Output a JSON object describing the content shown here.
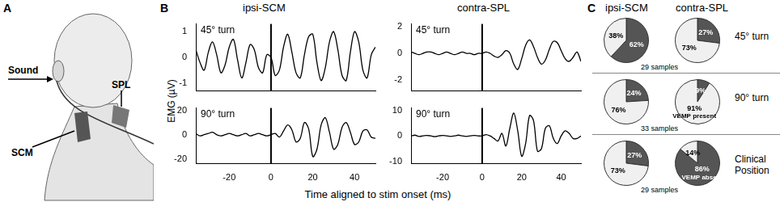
{
  "figure": {
    "panel_labels": [
      "A",
      "B",
      "C"
    ],
    "panel_a": {
      "labels": [
        "Sound",
        "SCM",
        "SPL"
      ]
    },
    "panel_b": {
      "columns": [
        "ipsi-SCM",
        "contra-SPL"
      ],
      "ylabel": "EMG (µV)",
      "xlabel": "Time aligned to stim onset (ms)"
    },
    "panel_c": {
      "columns": [
        "ipsi-SCM",
        "contra-SPL"
      ],
      "rows": [
        "45° turn",
        "90° turn",
        "Clinical Position"
      ],
      "samples": [
        "29 samples",
        "33 samples",
        "29 samples"
      ]
    }
  },
  "chart_data": [
    {
      "type": "line",
      "annotation": "45° turn",
      "color": "#000000",
      "marker": "none",
      "grid": false,
      "tick_labels": "y",
      "x": [
        -36,
        -34,
        -32,
        -30,
        -28,
        -26,
        -24,
        -22,
        -20,
        -18,
        -16,
        -14,
        -12,
        -10,
        -8,
        -6,
        -4,
        -2,
        0,
        2,
        4,
        6,
        8,
        10,
        12,
        14,
        16,
        18,
        20,
        22,
        24,
        26,
        28,
        30,
        32,
        34,
        36,
        38,
        40,
        42,
        44,
        46,
        48,
        50
      ],
      "values": [
        0.3,
        -0.2,
        -0.5,
        0.2,
        0.6,
        0.1,
        -0.6,
        -0.3,
        0.4,
        0.7,
        -0.1,
        -0.8,
        -0.2,
        0.5,
        0.3,
        -0.4,
        -0.6,
        0.1,
        0.0,
        -0.7,
        -0.5,
        0.4,
        0.9,
        0.2,
        -0.6,
        -0.8,
        0.1,
        0.8,
        0.9,
        -0.2,
        -0.9,
        -0.4,
        0.6,
        1.0,
        0.3,
        -0.7,
        -0.9,
        0.2,
        1.0,
        0.6,
        -0.5,
        -0.8,
        0.1,
        0.4
      ],
      "xlim": [
        -36,
        50
      ],
      "xticks": [
        -20,
        0,
        20,
        40
      ],
      "ylim": [
        -1.3,
        1.3
      ],
      "yticks": [
        -1,
        0,
        1
      ],
      "vline_x": 0
    },
    {
      "type": "line",
      "annotation": "45° turn",
      "color": "#000000",
      "marker": "none",
      "grid": false,
      "tick_labels": "y",
      "x": [
        -36,
        -34,
        -32,
        -30,
        -28,
        -26,
        -24,
        -22,
        -20,
        -18,
        -16,
        -14,
        -12,
        -10,
        -8,
        -6,
        -4,
        -2,
        0,
        2,
        4,
        6,
        8,
        10,
        12,
        14,
        16,
        18,
        20,
        22,
        24,
        26,
        28,
        30,
        32,
        34,
        36,
        38,
        40,
        42,
        44,
        46,
        48,
        50
      ],
      "values": [
        0.1,
        0.0,
        -0.1,
        0.0,
        0.1,
        0.1,
        0.0,
        -0.1,
        0.0,
        0.1,
        0.0,
        -0.1,
        0.0,
        0.1,
        0.0,
        0.0,
        -0.1,
        0.0,
        0.0,
        0.1,
        0.0,
        -0.2,
        -0.3,
        -0.1,
        0.2,
        0.0,
        -0.8,
        -1.2,
        -0.4,
        0.6,
        1.0,
        0.5,
        -0.3,
        -0.8,
        -0.5,
        0.3,
        0.9,
        0.8,
        0.2,
        -0.4,
        -0.6,
        -0.3,
        0.1,
        -0.6
      ],
      "xlim": [
        -36,
        50
      ],
      "xticks": [
        -20,
        0,
        20,
        40
      ],
      "ylim": [
        -2.8,
        2.2
      ],
      "yticks": [
        -2,
        0,
        2
      ],
      "vline_x": 0
    },
    {
      "type": "line",
      "annotation": "90° turn",
      "color": "#000000",
      "marker": "none",
      "grid": false,
      "tick_labels": true,
      "x": [
        -36,
        -34,
        -32,
        -30,
        -28,
        -26,
        -24,
        -22,
        -20,
        -18,
        -16,
        -14,
        -12,
        -10,
        -8,
        -6,
        -4,
        -2,
        0,
        2,
        4,
        6,
        8,
        10,
        12,
        14,
        16,
        18,
        20,
        22,
        24,
        26,
        28,
        30,
        32,
        34,
        36,
        38,
        40,
        42,
        44,
        46,
        48,
        50
      ],
      "values": [
        1,
        -1,
        0,
        1,
        2,
        0,
        -1,
        0,
        1,
        0,
        -1,
        0,
        1,
        -1,
        0,
        1,
        0,
        -1,
        0,
        1,
        -2,
        3,
        8,
        4,
        -6,
        -3,
        10,
        5,
        -18,
        -12,
        8,
        14,
        2,
        -12,
        -8,
        6,
        10,
        2,
        -8,
        -6,
        3,
        4,
        -2,
        -3
      ],
      "xlim": [
        -36,
        50
      ],
      "xticks": [
        -20,
        0,
        20,
        40
      ],
      "ylim": [
        -24,
        22
      ],
      "yticks": [
        -20,
        0,
        20
      ],
      "vline_x": 0
    },
    {
      "type": "line",
      "annotation": "90° turn",
      "color": "#000000",
      "marker": "none",
      "grid": false,
      "tick_labels": true,
      "x": [
        -36,
        -34,
        -32,
        -30,
        -28,
        -26,
        -24,
        -22,
        -20,
        -18,
        -16,
        -14,
        -12,
        -10,
        -8,
        -6,
        -4,
        -2,
        0,
        2,
        4,
        6,
        8,
        10,
        12,
        14,
        16,
        18,
        20,
        22,
        24,
        26,
        28,
        30,
        32,
        34,
        36,
        38,
        40,
        42,
        44,
        46,
        48,
        50
      ],
      "values": [
        0,
        0.3,
        -0.2,
        0,
        0.2,
        0,
        -0.3,
        0,
        0.2,
        0,
        -0.2,
        0,
        0.3,
        0,
        -0.2,
        0,
        0.2,
        0,
        0,
        0.5,
        0,
        -1,
        -2,
        1,
        -4,
        3,
        9,
        2,
        -8,
        -3,
        8,
        6,
        -6,
        -5,
        3,
        4,
        -1,
        -3,
        0,
        2,
        1,
        -1,
        -1,
        0
      ],
      "xlim": [
        -36,
        50
      ],
      "xticks": [
        -20,
        0,
        20,
        40
      ],
      "ylim": [
        -11,
        11
      ],
      "yticks": [
        -10,
        0,
        10
      ],
      "vline_x": 0
    },
    {
      "type": "pie",
      "data_labels": true,
      "values": [
        62,
        38
      ],
      "value_labels": [
        "62%",
        "38%"
      ],
      "colors": [
        "#555555",
        "#f0f0f0"
      ],
      "slice_notes": [
        null,
        null
      ]
    },
    {
      "type": "pie",
      "data_labels": true,
      "values": [
        27,
        73
      ],
      "value_labels": [
        "27%",
        "73%"
      ],
      "colors": [
        "#555555",
        "#f0f0f0"
      ],
      "slice_notes": [
        null,
        null
      ]
    },
    {
      "type": "pie",
      "data_labels": true,
      "values": [
        24,
        76
      ],
      "value_labels": [
        "24%",
        "76%"
      ],
      "colors": [
        "#555555",
        "#f0f0f0"
      ],
      "slice_notes": [
        null,
        null
      ]
    },
    {
      "type": "pie",
      "data_labels": true,
      "values": [
        9,
        91
      ],
      "value_labels": [
        "9%",
        "91%"
      ],
      "colors": [
        "#555555",
        "#f0f0f0"
      ],
      "slice_notes": [
        null,
        "VEMP present"
      ]
    },
    {
      "type": "pie",
      "data_labels": true,
      "values": [
        27,
        73
      ],
      "value_labels": [
        "27%",
        "73%"
      ],
      "colors": [
        "#555555",
        "#f0f0f0"
      ],
      "slice_notes": [
        null,
        null
      ]
    },
    {
      "type": "pie",
      "data_labels": true,
      "values": [
        86,
        14
      ],
      "value_labels": [
        "86%",
        "14%"
      ],
      "colors": [
        "#555555",
        "#f0f0f0"
      ],
      "slice_notes": [
        "VEMP absent",
        null
      ]
    }
  ]
}
